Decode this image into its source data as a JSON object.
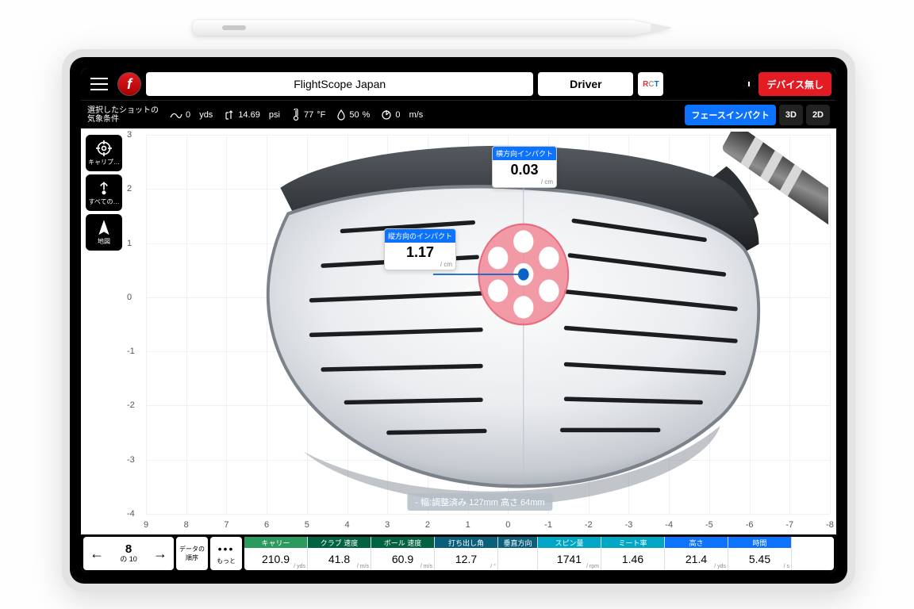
{
  "device": {
    "pencil": true,
    "tablet_bezel_color": "#e3e3e3"
  },
  "topbar": {
    "app_title": "FlightScope Japan",
    "club": "Driver",
    "rct_badge": "RCT",
    "device_status": "デバイス無し",
    "accent_red": "#e31b23"
  },
  "conditions": {
    "label": "選択したショットの\n気象条件",
    "distance": {
      "value": "0",
      "unit": "yds"
    },
    "pressure": {
      "value": "14.69",
      "unit": "psi"
    },
    "temperature": {
      "value": "77",
      "unit": "°F"
    },
    "humidity": {
      "value": "50",
      "unit": "%"
    },
    "wind": {
      "value": "0",
      "unit": "m/s"
    }
  },
  "view_tabs": {
    "items": [
      {
        "label": "フェースインパクト",
        "active": true
      },
      {
        "label": "3D",
        "active": false
      },
      {
        "label": "2D",
        "active": false
      }
    ]
  },
  "side_tools": [
    {
      "name": "calibrate",
      "label": "キャリプ…"
    },
    {
      "name": "all-shots",
      "label": "すべての…"
    },
    {
      "name": "map",
      "label": "地図"
    }
  ],
  "chart": {
    "x_ticks": [
      9,
      8,
      7,
      6,
      5,
      4,
      3,
      2,
      1,
      0,
      -1,
      -2,
      -3,
      -4,
      -5,
      -6,
      -7,
      -8
    ],
    "y_ticks": [
      3,
      2,
      1,
      0,
      -1,
      -2,
      -3,
      -4
    ],
    "grid_color": "#eef1f4",
    "zero_line_color": "#b8c5d3",
    "impact": {
      "horizontal": {
        "label": "横方向インパクト",
        "value": "0.03",
        "unit": "/ cm"
      },
      "vertical": {
        "label": "縦方向のインパクト",
        "value": "1.17",
        "unit": "/ cm"
      },
      "marker_color": "#0b63c7",
      "target_color": "#f08a98"
    },
    "footer_note": "- 幅:調整済み 127mm 高さ 64mm"
  },
  "shot_nav": {
    "current": "8",
    "total_label": "の 10",
    "data_order_label": "データの\n順序",
    "more_label": "もっと"
  },
  "metrics": [
    {
      "label": "キャリー",
      "value": "210.9",
      "unit": "/ yds",
      "color": "#2b9a5c"
    },
    {
      "label": "クラブ 速度",
      "value": "41.8",
      "unit": "/ m/s",
      "color": "#006241"
    },
    {
      "label": "ボール 速度",
      "value": "60.9",
      "unit": "/ m/s",
      "color": "#006241"
    },
    {
      "label": "打ち出し角",
      "value": "12.7",
      "unit": "/ °",
      "color": "#0a5f7a"
    },
    {
      "label": "垂直方向",
      "value": "",
      "unit": "",
      "color": "#0a5f7a",
      "narrow": true
    },
    {
      "label": "スピン量",
      "value": "1741",
      "unit": "/ rpm",
      "color": "#00a7c4"
    },
    {
      "label": "ミート率",
      "value": "1.46",
      "unit": "",
      "color": "#00a7c4"
    },
    {
      "label": "高さ",
      "value": "21.4",
      "unit": "/ yds",
      "color": "#0d73ff"
    },
    {
      "label": "時間",
      "value": "5.45",
      "unit": "/ s",
      "color": "#0d73ff"
    }
  ]
}
